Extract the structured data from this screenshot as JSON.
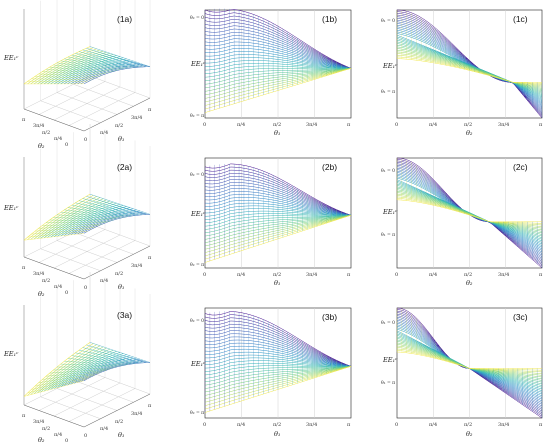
{
  "figure": {
    "rows": [
      {
        "surface": {
          "label": "(1a)",
          "zlabel": "EE₁ᶜ",
          "x_axis": {
            "label": "θ₁",
            "ticks": [
              "0",
              "π/4",
              "π/2",
              "3π/4",
              "π"
            ]
          },
          "y_axis": {
            "label": "θ₂",
            "ticks": [
              "0",
              "π/4",
              "π/2",
              "3π/4",
              "π"
            ]
          }
        },
        "panel_b": {
          "label": "(1b)",
          "ylabel": "EE₁ᶜ",
          "xlabel": "θ₁",
          "xticks": [
            "0",
            "π/4",
            "π/2",
            "3π/4",
            "π"
          ],
          "top_annotation": "θ₂ = 0",
          "bottom_annotation": "θ₂ = π"
        },
        "panel_c": {
          "label": "(1c)",
          "ylabel": "EE₁ᶜ",
          "xlabel": "θ₂",
          "xticks": [
            "0",
            "π/4",
            "π/2",
            "3π/4",
            "π"
          ],
          "top_annotation": "θ₁ = 0",
          "bottom_annotation": "θ₁ = π"
        }
      },
      {
        "surface": {
          "label": "(2a)",
          "zlabel": "EE₁ᶜ",
          "x_axis": {
            "label": "θ₁",
            "ticks": [
              "0",
              "π/4",
              "π/2",
              "3π/4",
              "π"
            ]
          },
          "y_axis": {
            "label": "θ₂",
            "ticks": [
              "0",
              "π/4",
              "π/2",
              "3π/4",
              "π"
            ]
          }
        },
        "panel_b": {
          "label": "(2b)",
          "ylabel": "EE₁ᶜ",
          "xlabel": "θ₁",
          "xticks": [
            "0",
            "π/4",
            "π/2",
            "3π/4",
            "π"
          ],
          "top_annotation": "θ₂ = 0",
          "bottom_annotation": "θ₂ = π"
        },
        "panel_c": {
          "label": "(2c)",
          "ylabel": "EE₁ᶜ",
          "xlabel": "θ₂",
          "xticks": [
            "0",
            "π/4",
            "π/2",
            "3π/4",
            "π"
          ],
          "top_annotation": "θ₁ = 0",
          "bottom_annotation": "θ₁ = π"
        }
      },
      {
        "surface": {
          "label": "(3a)",
          "zlabel": "EE₁ᶜ",
          "x_axis": {
            "label": "θ₁",
            "ticks": [
              "0",
              "π/4",
              "π/2",
              "3π/4",
              "π"
            ]
          },
          "y_axis": {
            "label": "θ₂",
            "ticks": [
              "0",
              "π/4",
              "π/2",
              "3π/4",
              "π"
            ]
          }
        },
        "panel_b": {
          "label": "(3b)",
          "ylabel": "EE₁ᶜ",
          "xlabel": "θ₁",
          "xticks": [
            "0",
            "π/4",
            "π/2",
            "3π/4",
            "π"
          ],
          "top_annotation": "θ₂ = 0",
          "bottom_annotation": "θ₂ = π"
        },
        "panel_c": {
          "label": "(3c)",
          "ylabel": "EE₁ᶜ",
          "xlabel": "θ₂",
          "xticks": [
            "0",
            "π/4",
            "π/2",
            "3π/4",
            "π"
          ],
          "top_annotation": "θ₁ = 0",
          "bottom_annotation": "θ₁ = π"
        }
      }
    ]
  },
  "chart_data": [
    {
      "type": "line",
      "panel": "(1b)",
      "x_range": [
        0,
        3.1416
      ],
      "xticks": [
        0,
        0.7854,
        1.5708,
        2.3562,
        3.1416
      ],
      "series_count": 30,
      "series_parameter": "θ₂ from 0 to π",
      "start_top": 1.0,
      "start_bottom": 0.05,
      "converge_x": 3.1416,
      "converge_y": 0.46,
      "first_series_peak_x": 0.6,
      "colormap": [
        "#440c8c",
        "#3b59b5",
        "#2b8ac9",
        "#33b8b4",
        "#7ad17a",
        "#f4e94a"
      ]
    },
    {
      "type": "line",
      "panel": "(1c)",
      "x_range": [
        0,
        3.1416
      ],
      "xticks": [
        0,
        0.7854,
        1.5708,
        2.3562,
        3.1416
      ],
      "series_count": 30,
      "series_parameter": "θ₁ from 0 to π",
      "start_top": 1.0,
      "start_bottom": 0.55,
      "crossover_x": 2.5,
      "crossover_y": 0.33,
      "end_top": 0.33,
      "end_bottom": 0.0,
      "colormap": [
        "#440c8c",
        "#3b59b5",
        "#2b8ac9",
        "#33b8b4",
        "#7ad17a",
        "#f4e94a"
      ]
    },
    {
      "type": "line",
      "panel": "(2b)",
      "x_range": [
        0,
        3.1416
      ],
      "xticks": [
        0,
        0.7854,
        1.5708,
        2.3562,
        3.1416
      ],
      "series_count": 30,
      "series_parameter": "θ₂ from 0 to π",
      "start_top": 0.92,
      "start_bottom": 0.05,
      "converge_x": 3.1416,
      "converge_y": 0.48,
      "first_series_peak_x": 0.55,
      "colormap": [
        "#440c8c",
        "#3b59b5",
        "#2b8ac9",
        "#33b8b4",
        "#7ad17a",
        "#f4e94a"
      ]
    },
    {
      "type": "line",
      "panel": "(2c)",
      "x_range": [
        0,
        3.1416
      ],
      "xticks": [
        0,
        0.7854,
        1.5708,
        2.3562,
        3.1416
      ],
      "series_count": 30,
      "series_parameter": "θ₁ from 0 to π",
      "start_top": 1.0,
      "start_bottom": 0.62,
      "crossover_x": 2.0,
      "crossover_y": 0.42,
      "end_top": 0.42,
      "end_bottom": 0.0,
      "colormap": [
        "#440c8c",
        "#3b59b5",
        "#2b8ac9",
        "#33b8b4",
        "#7ad17a",
        "#f4e94a"
      ]
    },
    {
      "type": "line",
      "panel": "(3b)",
      "x_range": [
        0,
        3.1416
      ],
      "xticks": [
        0,
        0.7854,
        1.5708,
        2.3562,
        3.1416
      ],
      "series_count": 30,
      "series_parameter": "θ₂ from 0 to π",
      "start_top": 0.95,
      "start_bottom": 0.05,
      "converge_x": 3.1416,
      "converge_y": 0.47,
      "first_series_peak_x": 0.55,
      "colormap": [
        "#440c8c",
        "#3b59b5",
        "#2b8ac9",
        "#33b8b4",
        "#7ad17a",
        "#f4e94a"
      ]
    },
    {
      "type": "line",
      "panel": "(3c)",
      "x_range": [
        0,
        3.1416
      ],
      "xticks": [
        0,
        0.7854,
        1.5708,
        2.3562,
        3.1416
      ],
      "series_count": 30,
      "series_parameter": "θ₁ from 0 to π",
      "start_top": 1.0,
      "start_bottom": 0.6,
      "crossover_x": 1.5708,
      "crossover_y": 0.45,
      "end_top": 0.45,
      "end_bottom": 0.0,
      "colormap": [
        "#440c8c",
        "#3b59b5",
        "#2b8ac9",
        "#33b8b4",
        "#7ad17a",
        "#f4e94a"
      ]
    }
  ]
}
